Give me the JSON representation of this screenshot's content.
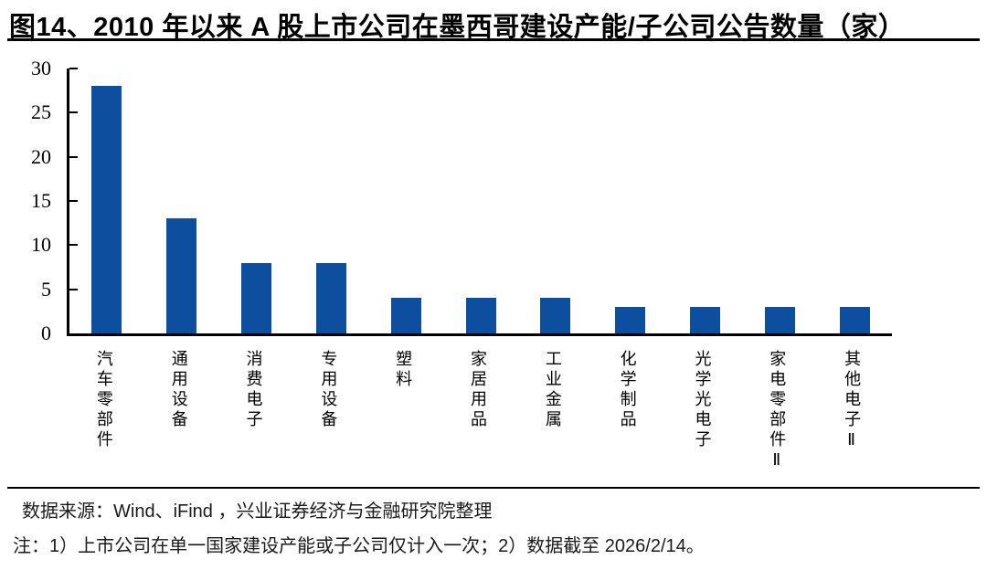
{
  "title": "图14、2010 年以来 A 股上市公司在墨西哥建设产能/子公司公告数量（家）",
  "chart_data": {
    "type": "bar",
    "title": "2010 年以来 A 股上市公司在墨西哥建设产能/子公司公告数量（家）",
    "categories": [
      "汽车零部件",
      "通用设备",
      "消费电子",
      "专用设备",
      "塑料",
      "家居用品",
      "工业金属",
      "化学制品",
      "光学光电子",
      "家电零部件Ⅱ",
      "其他电子Ⅱ"
    ],
    "values": [
      28,
      13,
      8,
      8,
      4,
      4,
      4,
      3,
      3,
      3,
      3
    ],
    "xlabel": "",
    "ylabel": "",
    "ylim": [
      0,
      30
    ],
    "yticks": [
      0,
      5,
      10,
      15,
      20,
      25,
      30
    ],
    "grid": false,
    "legend": null,
    "bar_color": "#0D4F9E",
    "axis_color": "#000000"
  },
  "footer": {
    "source": "数据来源：Wind、iFind ，兴业证券经济与金融研究院整理",
    "note": "注：1）上市公司在单一国家建设产能或子公司仅计入一次；2）数据截至 2026/2/14。"
  },
  "colors": {
    "bar": "#0D4F9E",
    "text": "#1a1a1a",
    "rule": "#000000",
    "background": "#ffffff"
  }
}
